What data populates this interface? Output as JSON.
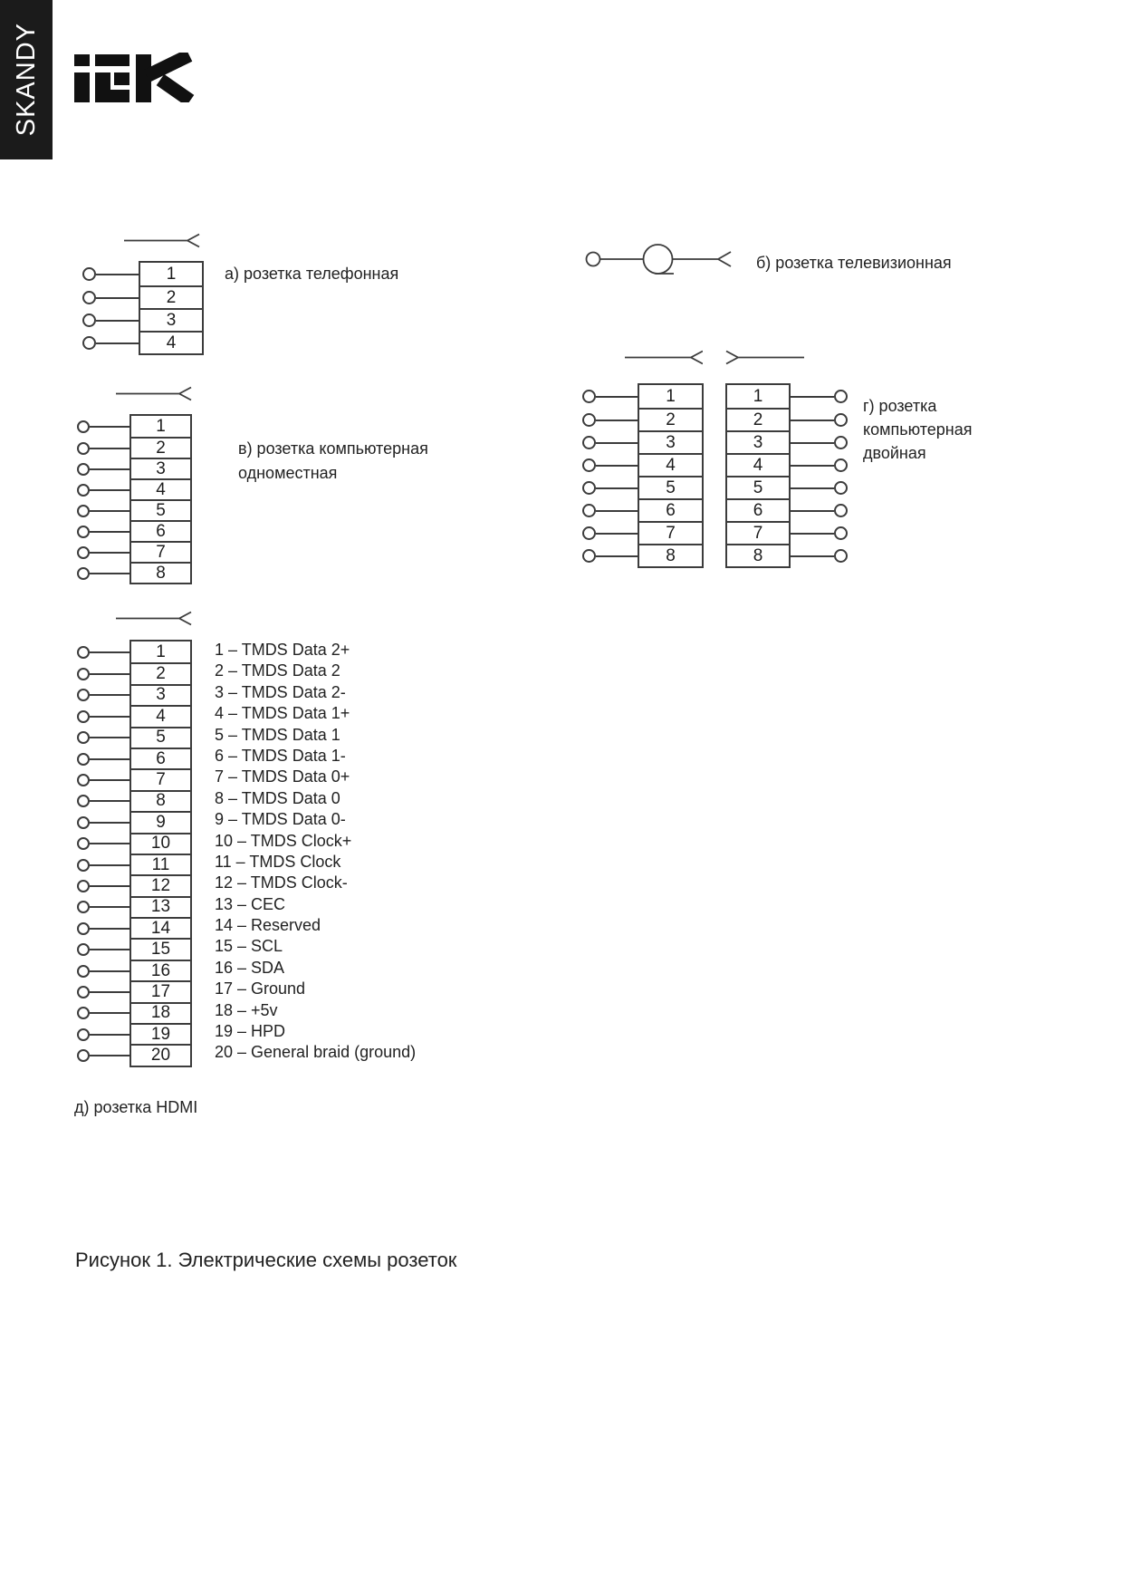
{
  "header": {
    "series": "SKANDY",
    "logo_text": "iEK"
  },
  "figures": {
    "telephone": {
      "label": "а) розетка телефонная",
      "pins": [
        "1",
        "2",
        "3",
        "4"
      ]
    },
    "tv": {
      "label": "б) розетка телевизионная"
    },
    "computer_single": {
      "label": "в) розетка компьютерная одноместная",
      "pins": [
        "1",
        "2",
        "3",
        "4",
        "5",
        "6",
        "7",
        "8"
      ]
    },
    "computer_double": {
      "label": "г) розетка компьютерная двойная",
      "left_pins": [
        "1",
        "2",
        "3",
        "4",
        "5",
        "6",
        "7",
        "8"
      ],
      "right_pins": [
        "1",
        "2",
        "3",
        "4",
        "5",
        "6",
        "7",
        "8"
      ]
    },
    "hdmi": {
      "label": "д) розетка HDMI",
      "pins": [
        "1",
        "2",
        "3",
        "4",
        "5",
        "6",
        "7",
        "8",
        "9",
        "10",
        "11",
        "12",
        "13",
        "14",
        "15",
        "16",
        "17",
        "18",
        "19",
        "20"
      ],
      "descriptions": [
        "1 – TMDS Data 2+",
        "2 – TMDS Data 2",
        "3 – TMDS Data 2-",
        "4 – TMDS Data 1+",
        "5 – TMDS Data 1",
        "6 – TMDS Data 1-",
        "7 – TMDS Data 0+",
        "8 – TMDS Data 0",
        "9 – TMDS Data 0-",
        "10 – TMDS Clock+",
        "11 – TMDS Clock",
        "12 – TMDS Clock-",
        "13 – CEC",
        "14 – Reserved",
        "15 – SCL",
        "16 – SDA",
        "17 – Ground",
        "18 – +5v",
        "19 – HPD",
        "20 – General braid (ground)"
      ]
    }
  },
  "caption": {
    "text": "Рисунок 1. Электрические схемы розеток"
  },
  "colors": {
    "line": "#3c3c3c",
    "ink": "#222222",
    "tab_bg": "#1b1b1b"
  }
}
